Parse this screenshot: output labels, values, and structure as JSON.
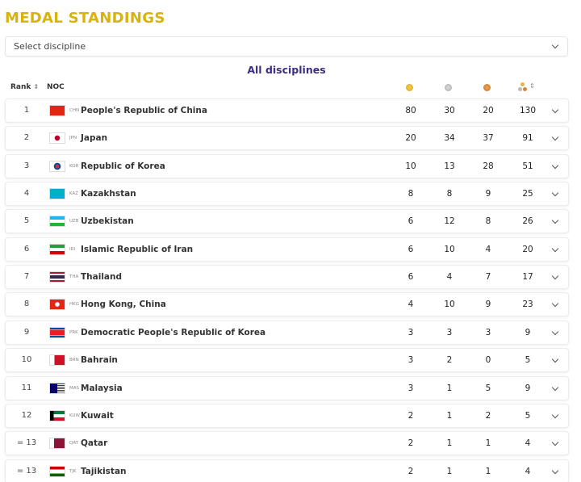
{
  "header": {
    "title": "MEDAL STANDINGS"
  },
  "select": {
    "placeholder": "Select discipline"
  },
  "subtitle": "All disciplines",
  "table": {
    "columns": {
      "rank": "Rank",
      "noc": "NOC"
    },
    "rows": [
      {
        "rank": 1,
        "code": "CHN",
        "country": "People's Republic of China",
        "gold": 80,
        "silver": 30,
        "bronze": 20,
        "total": 130
      },
      {
        "rank": 2,
        "code": "JPN",
        "country": "Japan",
        "gold": 20,
        "silver": 34,
        "bronze": 37,
        "total": 91
      },
      {
        "rank": 3,
        "code": "KOR",
        "country": "Republic of Korea",
        "gold": 10,
        "silver": 13,
        "bronze": 28,
        "total": 51
      },
      {
        "rank": 4,
        "code": "KAZ",
        "country": "Kazakhstan",
        "gold": 8,
        "silver": 8,
        "bronze": 9,
        "total": 25
      },
      {
        "rank": 5,
        "code": "UZB",
        "country": "Uzbekistan",
        "gold": 6,
        "silver": 12,
        "bronze": 8,
        "total": 26
      },
      {
        "rank": 6,
        "code": "IRI",
        "country": "Islamic Republic of Iran",
        "gold": 6,
        "silver": 10,
        "bronze": 4,
        "total": 20
      },
      {
        "rank": 7,
        "code": "THA",
        "country": "Thailand",
        "gold": 6,
        "silver": 4,
        "bronze": 7,
        "total": 17
      },
      {
        "rank": 8,
        "code": "HKG",
        "country": "Hong Kong, China",
        "gold": 4,
        "silver": 10,
        "bronze": 9,
        "total": 23
      },
      {
        "rank": 9,
        "code": "PRK",
        "country": "Democratic People's Republic of Korea",
        "gold": 3,
        "silver": 3,
        "bronze": 3,
        "total": 9
      },
      {
        "rank": 10,
        "code": "BRN",
        "country": "Bahrain",
        "gold": 3,
        "silver": 2,
        "bronze": 0,
        "total": 5
      },
      {
        "rank": 11,
        "code": "MAS",
        "country": "Malaysia",
        "gold": 3,
        "silver": 1,
        "bronze": 5,
        "total": 9
      },
      {
        "rank": 12,
        "code": "KUW",
        "country": "Kuwait",
        "gold": 2,
        "silver": 1,
        "bronze": 2,
        "total": 5
      },
      {
        "rank": "= 13",
        "code": "QAT",
        "country": "Qatar",
        "gold": 2,
        "silver": 1,
        "bronze": 1,
        "total": 4
      },
      {
        "rank": "= 13",
        "code": "TJK",
        "country": "Tajikistan",
        "gold": 2,
        "silver": 1,
        "bronze": 1,
        "total": 4
      }
    ]
  }
}
